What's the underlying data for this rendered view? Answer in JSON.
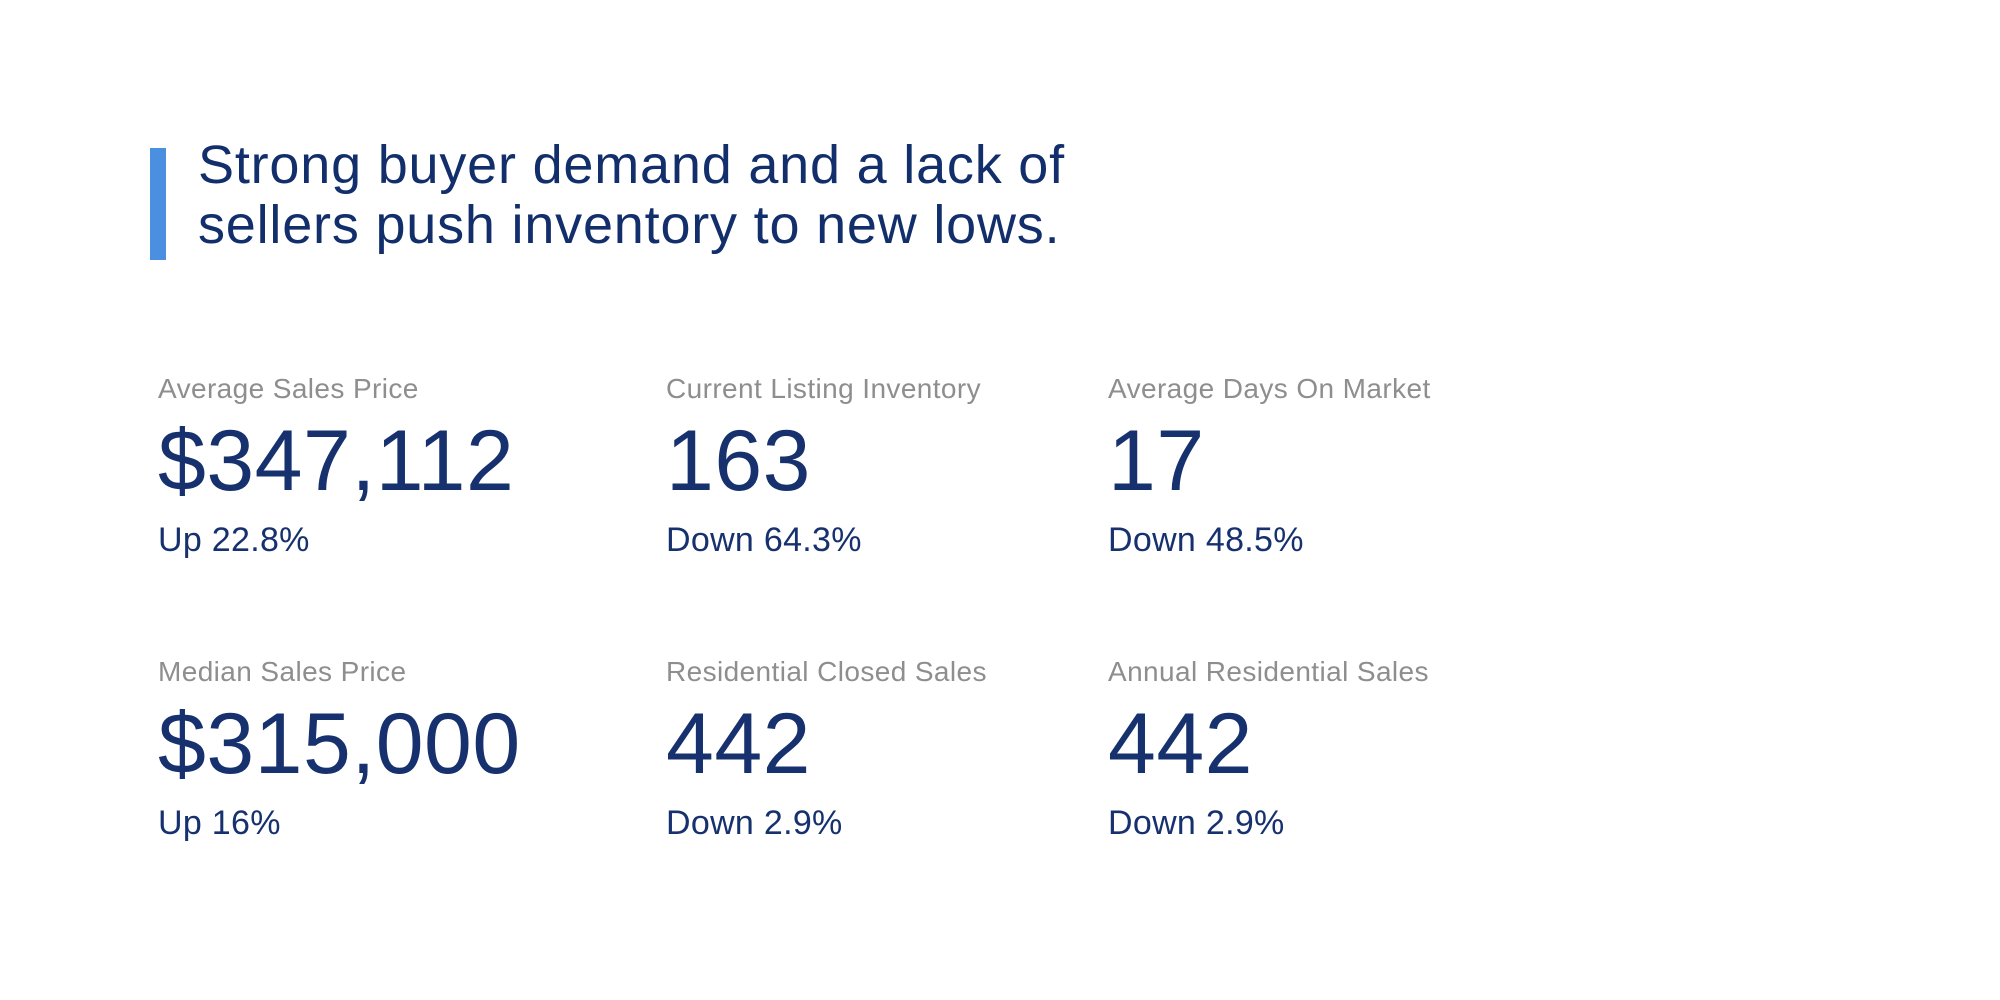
{
  "colors": {
    "background": "#ffffff",
    "accent_blue": "#4a8fe0",
    "headline_navy": "#122f6b",
    "stat_navy": "#16316e",
    "label_gray": "#8e8e8e"
  },
  "headline": {
    "line1": "Strong buyer demand and a lack of",
    "line2": "sellers push inventory to new lows."
  },
  "stats": [
    {
      "label": "Average Sales Price",
      "value": "$347,112",
      "change": "Up 22.8%"
    },
    {
      "label": "Current Listing Inventory",
      "value": "163",
      "change": "Down 64.3%"
    },
    {
      "label": "Average Days On Market",
      "value": "17",
      "change": "Down 48.5%"
    },
    {
      "label": "Median Sales Price",
      "value": "$315,000",
      "change": "Up 16%"
    },
    {
      "label": "Residential Closed Sales",
      "value": "442",
      "change": "Down 2.9%"
    },
    {
      "label": "Annual Residential Sales",
      "value": "442",
      "change": "Down 2.9%"
    }
  ]
}
